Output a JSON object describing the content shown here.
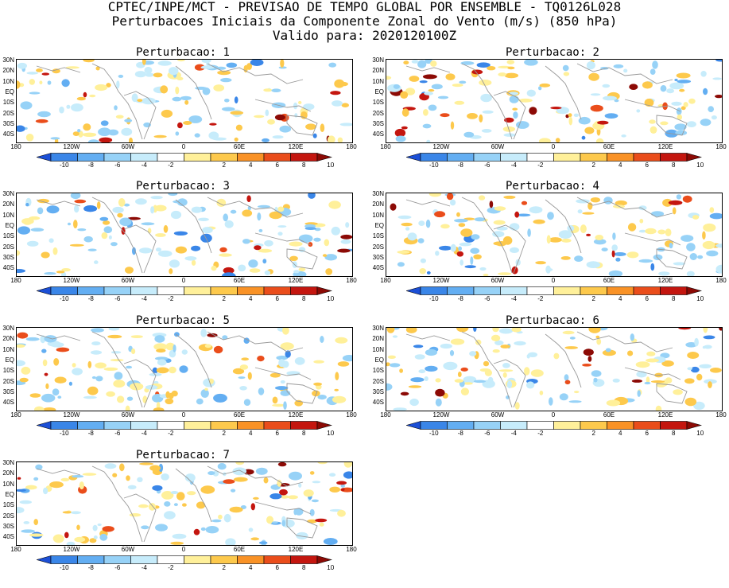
{
  "header": {
    "line1": "CPTEC/INPE/MCT - PREVISAO DE TEMPO GLOBAL POR ENSEMBLE - TQ0126L028",
    "line2": "Perturbacoes Iniciais da Componente Zonal do Vento (m/s) (850 hPa)",
    "line3": "Valido para: 2020120100Z"
  },
  "panels": [
    {
      "title": "Perturbacao: 1"
    },
    {
      "title": "Perturbacao: 2"
    },
    {
      "title": "Perturbacao: 3"
    },
    {
      "title": "Perturbacao: 4"
    },
    {
      "title": "Perturbacao: 5"
    },
    {
      "title": "Perturbacao: 6"
    },
    {
      "title": "Perturbacao: 7"
    }
  ],
  "axes": {
    "lat_labels": [
      "30N",
      "20N",
      "10N",
      "EQ",
      "10S",
      "20S",
      "30S",
      "40S"
    ],
    "lon_labels": [
      "180",
      "120W",
      "60W",
      "0",
      "60E",
      "120E",
      "180"
    ]
  },
  "colorbar": {
    "labels": [
      "-10",
      "-8",
      "-6",
      "-4",
      "-2",
      "2",
      "4",
      "6",
      "8",
      "10"
    ],
    "colors": [
      "#1c4fd6",
      "#3a86e8",
      "#63aef2",
      "#97d2f7",
      "#c7ecfb",
      "#ffffff",
      "#fff09a",
      "#fdc94c",
      "#f99226",
      "#ea4d1b",
      "#c4160f",
      "#8c0a05"
    ]
  }
}
